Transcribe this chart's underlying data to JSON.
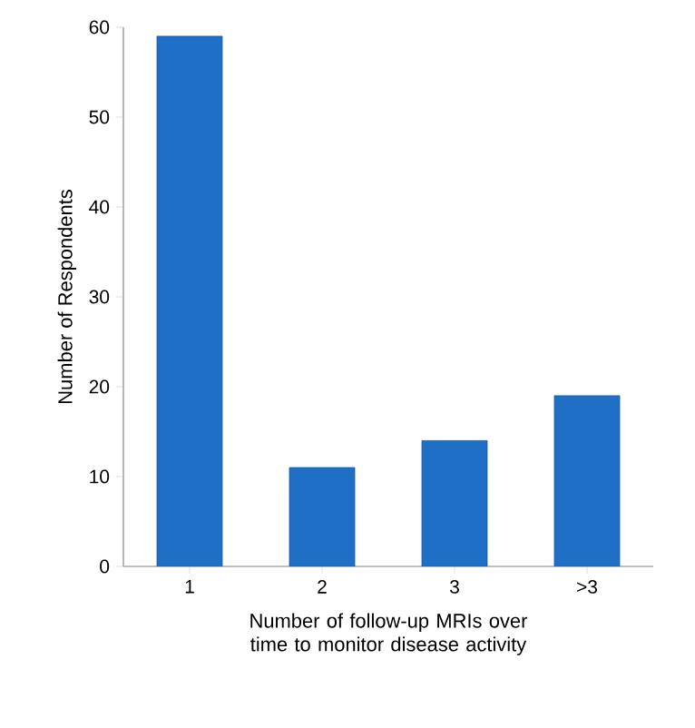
{
  "chart_data": {
    "type": "bar",
    "xlabel": "Number of follow-up MRIs over time to monitor disease activity",
    "ylabel": "Number of Respondents",
    "categories": [
      "1",
      "2",
      "3",
      ">3"
    ],
    "values": [
      59,
      11,
      14,
      19
    ],
    "color": "#1f6fc6",
    "ylim": [
      0,
      60
    ],
    "yticks": [
      0,
      10,
      20,
      30,
      40,
      50,
      60
    ],
    "grid": false
  }
}
